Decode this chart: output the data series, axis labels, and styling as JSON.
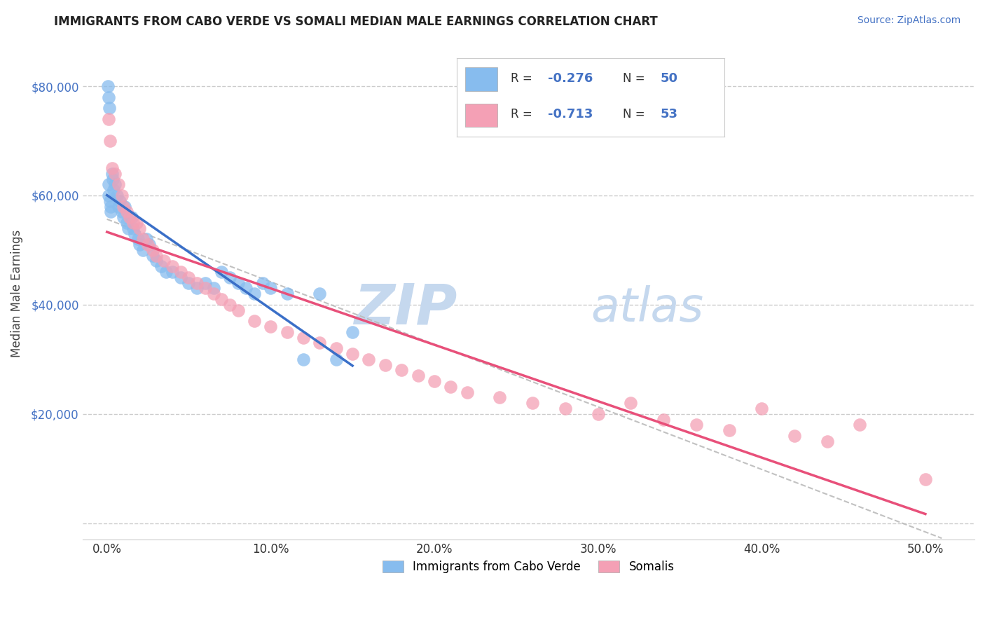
{
  "title": "IMMIGRANTS FROM CABO VERDE VS SOMALI MEDIAN MALE EARNINGS CORRELATION CHART",
  "source": "Source: ZipAtlas.com",
  "ylabel": "Median Male Earnings",
  "x_tick_labels": [
    "0.0%",
    "10.0%",
    "20.0%",
    "30.0%",
    "40.0%",
    "50.0%"
  ],
  "x_ticks": [
    0,
    10,
    20,
    30,
    40,
    50
  ],
  "y_ticks": [
    0,
    20000,
    40000,
    60000,
    80000
  ],
  "y_tick_labels": [
    "",
    "$20,000",
    "$40,000",
    "$60,000",
    "$80,000"
  ],
  "xlim": [
    -1.5,
    53
  ],
  "ylim": [
    -3000,
    87000
  ],
  "blue_color": "#87BCEE",
  "pink_color": "#F4A0B5",
  "blue_line_color": "#3A6FC8",
  "pink_line_color": "#E8507A",
  "dashed_line_color": "#BBBBBB",
  "R_blue": -0.276,
  "N_blue": 50,
  "R_pink": -0.713,
  "N_pink": 53,
  "legend_labels": [
    "Immigrants from Cabo Verde",
    "Somalis"
  ],
  "watermark_zip": "ZIP",
  "watermark_atlas": "atlas",
  "watermark_color": "#C5D8EE",
  "cabo_verde_x": [
    0.05,
    0.1,
    0.15,
    0.2,
    0.25,
    0.3,
    0.35,
    0.4,
    0.5,
    0.6,
    0.7,
    0.8,
    0.9,
    1.0,
    1.1,
    1.2,
    1.3,
    1.5,
    1.6,
    1.7,
    1.9,
    2.0,
    2.2,
    2.4,
    2.6,
    2.8,
    3.0,
    3.3,
    3.6,
    4.0,
    4.5,
    5.0,
    5.5,
    6.0,
    6.5,
    7.0,
    7.5,
    8.0,
    8.5,
    9.0,
    9.5,
    10.0,
    11.0,
    12.0,
    13.0,
    14.0,
    15.0,
    0.08,
    0.12,
    0.22
  ],
  "cabo_verde_y": [
    80000,
    78000,
    76000,
    59000,
    57000,
    64000,
    63000,
    61000,
    62000,
    60000,
    58000,
    59000,
    57000,
    56000,
    58000,
    55000,
    54000,
    56000,
    54000,
    53000,
    52000,
    51000,
    50000,
    52000,
    51000,
    49000,
    48000,
    47000,
    46000,
    46000,
    45000,
    44000,
    43000,
    44000,
    43000,
    46000,
    45000,
    44000,
    43000,
    42000,
    44000,
    43000,
    42000,
    30000,
    42000,
    30000,
    35000,
    62000,
    60000,
    58000
  ],
  "somali_x": [
    0.1,
    0.2,
    0.3,
    0.5,
    0.7,
    0.9,
    1.0,
    1.2,
    1.4,
    1.6,
    1.8,
    2.0,
    2.2,
    2.5,
    2.8,
    3.0,
    3.5,
    4.0,
    4.5,
    5.0,
    5.5,
    6.0,
    6.5,
    7.0,
    7.5,
    8.0,
    9.0,
    10.0,
    11.0,
    12.0,
    13.0,
    14.0,
    15.0,
    16.0,
    17.0,
    18.0,
    19.0,
    20.0,
    21.0,
    22.0,
    24.0,
    26.0,
    28.0,
    30.0,
    32.0,
    34.0,
    36.0,
    38.0,
    40.0,
    42.0,
    44.0,
    46.0,
    50.0
  ],
  "somali_y": [
    74000,
    70000,
    65000,
    64000,
    62000,
    60000,
    58000,
    57000,
    56000,
    55000,
    55000,
    54000,
    52000,
    51000,
    50000,
    49000,
    48000,
    47000,
    46000,
    45000,
    44000,
    43000,
    42000,
    41000,
    40000,
    39000,
    37000,
    36000,
    35000,
    34000,
    33000,
    32000,
    31000,
    30000,
    29000,
    28000,
    27000,
    26000,
    25000,
    24000,
    23000,
    22000,
    21000,
    20000,
    22000,
    19000,
    18000,
    17000,
    21000,
    16000,
    15000,
    18000,
    8000
  ]
}
